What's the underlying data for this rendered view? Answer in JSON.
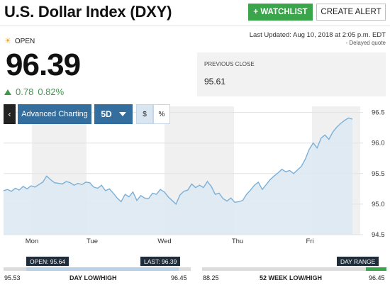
{
  "header": {
    "title": "U.S. Dollar Index (DXY)",
    "watchlist_label": "+ WATCHLIST",
    "alert_label": "CREATE ALERT"
  },
  "status": {
    "market_state": "OPEN",
    "last_updated": "Last Updated: Aug 10, 2018 at 2:05 p.m. EDT",
    "delayed_note": "- Delayed quote"
  },
  "quote": {
    "price": "96.39",
    "change": "0.78",
    "change_pct": "0.82%"
  },
  "previous_close": {
    "label": "PREVIOUS CLOSE",
    "value": "95.61"
  },
  "toolbar": {
    "back_label": "‹",
    "advanced_label": "Advanced Charting",
    "period_label": "5D",
    "dollar_label": "$",
    "percent_label": "%"
  },
  "colors": {
    "positive": "#3a9a48",
    "accent_green": "#3aa54a",
    "toolbar_blue": "#336e9e",
    "line": "#7ab0d8",
    "area": "#dde9f3",
    "weekend_band": "#f0f0f0"
  },
  "chart_data": {
    "type": "area",
    "x_labels": [
      "Mon",
      "Tue",
      "Wed",
      "Thu",
      "Fri"
    ],
    "y_ticks": [
      "96.5",
      "96.0",
      "95.5",
      "95.0",
      "94.5"
    ],
    "ylim": [
      94.5,
      96.6
    ],
    "grid": true,
    "series": [
      {
        "values": [
          95.22,
          95.24,
          95.21,
          95.26,
          95.23,
          95.29,
          95.25,
          95.3,
          95.28,
          95.32,
          95.36,
          95.46,
          95.4,
          95.35,
          95.34,
          95.33,
          95.37,
          95.35,
          95.31,
          95.34,
          95.32,
          95.36,
          95.35,
          95.28,
          95.26,
          95.31,
          95.22,
          95.25,
          95.18,
          95.1,
          95.04,
          95.16,
          95.12,
          95.2,
          95.06,
          95.14,
          95.1,
          95.09,
          95.18,
          95.16,
          95.24,
          95.2,
          95.12,
          95.06,
          95.0,
          95.15,
          95.21,
          95.23,
          95.33,
          95.27,
          95.31,
          95.27,
          95.37,
          95.29,
          95.16,
          95.18,
          95.09,
          95.05,
          95.1,
          95.03,
          95.04,
          95.06,
          95.16,
          95.23,
          95.31,
          95.36,
          95.24,
          95.32,
          95.4,
          95.46,
          95.51,
          95.57,
          95.53,
          95.55,
          95.5,
          95.56,
          95.62,
          95.74,
          95.9,
          96.0,
          95.92,
          96.08,
          96.13,
          96.06,
          96.18,
          96.26,
          96.32,
          96.37,
          96.41,
          96.39
        ]
      }
    ]
  },
  "day_range": {
    "open_tag": "OPEN: 95.64",
    "last_tag": "LAST: 96.39",
    "low": "95.53",
    "high": "96.45",
    "label": "DAY LOW/HIGH",
    "open_value": 95.64,
    "last_value": 96.39,
    "low_value": 95.53,
    "high_value": 96.45
  },
  "week52_range": {
    "tag": "DAY RANGE",
    "low": "88.25",
    "high": "96.45",
    "label": "52 WEEK LOW/HIGH",
    "day_low_value": 95.53,
    "day_high_value": 96.45,
    "low_value": 88.25,
    "high_value": 96.45
  }
}
